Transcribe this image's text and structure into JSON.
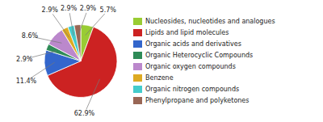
{
  "chart_data": {
    "type": "pie",
    "categories": [
      "Nucleosides, nucleotides and analogues",
      "Lipids and lipid molecules",
      "Organic acids and derivatives",
      "Organic Heterocyclic Compounds",
      "Organic oxygen compounds",
      "Benzene",
      "Organic nitrogen compounds",
      "Phenylpropane and polyketones"
    ],
    "values": [
      5.7,
      62.9,
      11.4,
      2.9,
      8.6,
      2.9,
      2.9,
      2.9
    ],
    "value_labels": [
      "5.7%",
      "62.9%",
      "11.4%",
      "2.9%",
      "8.6%",
      "2.9%",
      "2.9%",
      "2.9%"
    ],
    "colors": [
      "#99cc33",
      "#cc2222",
      "#3366cc",
      "#2e8b57",
      "#bb88cc",
      "#ddaa22",
      "#44cccc",
      "#996655"
    ],
    "data_labels": true,
    "legend": "right"
  }
}
